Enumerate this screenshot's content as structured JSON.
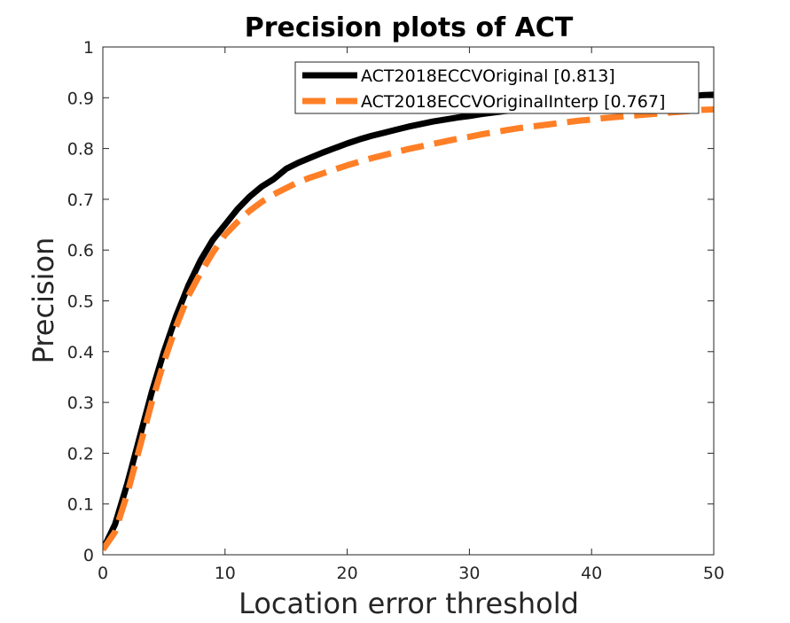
{
  "chart_data": {
    "type": "line",
    "title": "Precision plots of ACT",
    "xlabel": "Location error threshold",
    "ylabel": "Precision",
    "xlim": [
      0,
      50
    ],
    "ylim": [
      0,
      1
    ],
    "xticks": [
      0,
      10,
      20,
      30,
      40,
      50
    ],
    "yticks": [
      0,
      0.1,
      0.2,
      0.3,
      0.4,
      0.5,
      0.6,
      0.7,
      0.8,
      0.9,
      1
    ],
    "xtick_labels": [
      "0",
      "10",
      "20",
      "30",
      "40",
      "50"
    ],
    "ytick_labels": [
      "0",
      "0.1",
      "0.2",
      "0.3",
      "0.4",
      "0.5",
      "0.6",
      "0.7",
      "0.8",
      "0.9",
      "1"
    ],
    "grid": false,
    "legend_position": "top-right",
    "x": [
      0,
      1,
      2,
      3,
      4,
      5,
      6,
      7,
      8,
      9,
      10,
      11,
      12,
      13,
      14,
      15,
      16,
      17,
      18,
      19,
      20,
      21,
      22,
      23,
      24,
      25,
      26,
      27,
      28,
      29,
      30,
      31,
      32,
      33,
      34,
      35,
      36,
      37,
      38,
      39,
      40,
      41,
      42,
      43,
      44,
      45,
      46,
      47,
      48,
      49,
      50
    ],
    "series": [
      {
        "name": "ACT2018ECCVOriginal [0.813]",
        "color": "#000000",
        "style": "solid",
        "values": [
          0.01,
          0.06,
          0.14,
          0.23,
          0.32,
          0.4,
          0.47,
          0.53,
          0.58,
          0.62,
          0.65,
          0.68,
          0.705,
          0.725,
          0.74,
          0.76,
          0.772,
          0.782,
          0.792,
          0.801,
          0.81,
          0.818,
          0.825,
          0.831,
          0.837,
          0.843,
          0.848,
          0.853,
          0.857,
          0.861,
          0.864,
          0.868,
          0.871,
          0.874,
          0.876,
          0.879,
          0.881,
          0.883,
          0.885,
          0.887,
          0.889,
          0.891,
          0.893,
          0.895,
          0.897,
          0.899,
          0.9,
          0.902,
          0.903,
          0.905,
          0.906
        ]
      },
      {
        "name": "ACT2018ECCVOriginalInterp [0.767]",
        "color": "#ff7f27",
        "style": "dashed",
        "values": [
          0.01,
          0.045,
          0.12,
          0.21,
          0.3,
          0.38,
          0.45,
          0.51,
          0.555,
          0.595,
          0.63,
          0.655,
          0.677,
          0.695,
          0.71,
          0.722,
          0.734,
          0.743,
          0.751,
          0.759,
          0.767,
          0.774,
          0.781,
          0.787,
          0.793,
          0.799,
          0.804,
          0.809,
          0.814,
          0.819,
          0.823,
          0.828,
          0.832,
          0.836,
          0.84,
          0.843,
          0.846,
          0.849,
          0.852,
          0.855,
          0.857,
          0.86,
          0.862,
          0.864,
          0.866,
          0.868,
          0.87,
          0.872,
          0.874,
          0.876,
          0.877
        ]
      }
    ]
  }
}
